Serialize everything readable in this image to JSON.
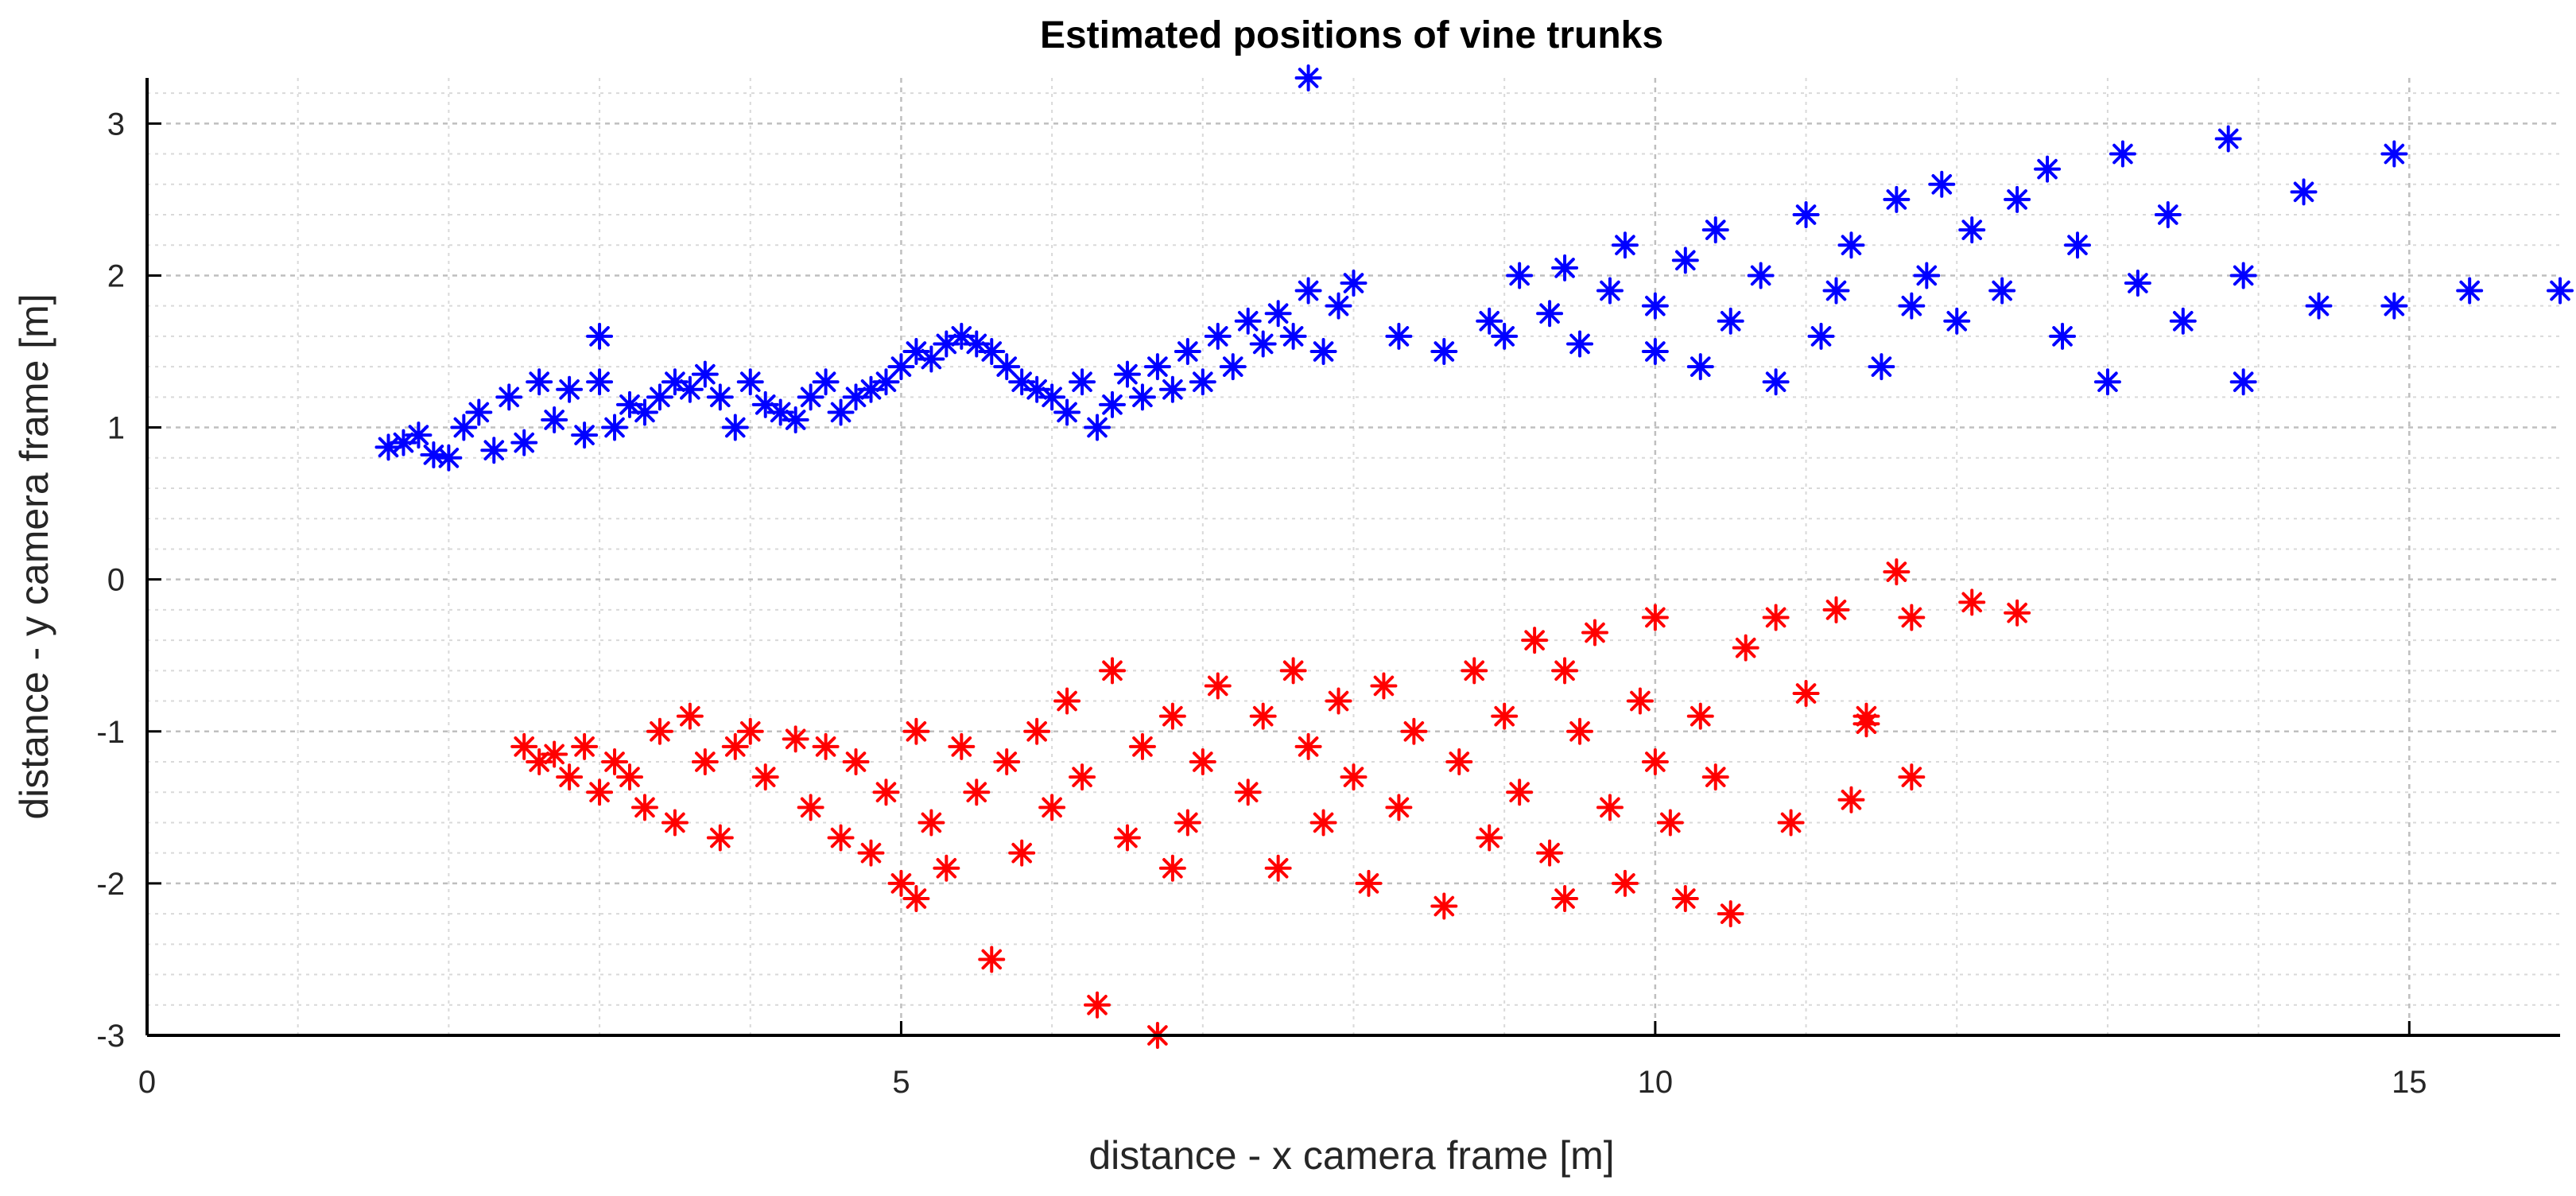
{
  "chart_data": {
    "type": "scatter",
    "title": "Estimated positions of vine trunks",
    "xlabel": "distance - x camera frame [m]",
    "ylabel": "distance - y camera frame [m]",
    "xlim": [
      0,
      16
    ],
    "ylim": [
      -3,
      3.3
    ],
    "x_ticks": [
      0,
      5,
      10,
      15
    ],
    "y_ticks": [
      -3,
      -2,
      -1,
      0,
      1,
      2,
      3
    ],
    "grid": true,
    "minor_grid": true,
    "marker": "asterisk",
    "series_colors": [
      "#0000ff",
      "#ff0000"
    ],
    "series": [
      {
        "points": [
          [
            1.6,
            0.87
          ],
          [
            1.7,
            0.9
          ],
          [
            1.8,
            0.95
          ],
          [
            1.9,
            0.82
          ],
          [
            2.0,
            0.8
          ],
          [
            2.1,
            1.0
          ],
          [
            2.2,
            1.1
          ],
          [
            2.3,
            0.85
          ],
          [
            2.4,
            1.2
          ],
          [
            2.5,
            0.9
          ],
          [
            2.6,
            1.3
          ],
          [
            2.7,
            1.05
          ],
          [
            2.8,
            1.25
          ],
          [
            2.9,
            0.95
          ],
          [
            3.0,
            1.3
          ],
          [
            3.1,
            1.0
          ],
          [
            3.2,
            1.15
          ],
          [
            3.3,
            1.1
          ],
          [
            3.4,
            1.2
          ],
          [
            3.5,
            1.3
          ],
          [
            3.6,
            1.25
          ],
          [
            3.7,
            1.35
          ],
          [
            3.8,
            1.2
          ],
          [
            3.9,
            1.0
          ],
          [
            4.0,
            1.3
          ],
          [
            4.1,
            1.15
          ],
          [
            4.2,
            1.1
          ],
          [
            4.3,
            1.05
          ],
          [
            4.4,
            1.2
          ],
          [
            4.5,
            1.3
          ],
          [
            4.6,
            1.1
          ],
          [
            4.7,
            1.2
          ],
          [
            4.8,
            1.25
          ],
          [
            4.9,
            1.3
          ],
          [
            5.0,
            1.4
          ],
          [
            5.1,
            1.5
          ],
          [
            5.2,
            1.45
          ],
          [
            5.3,
            1.55
          ],
          [
            5.4,
            1.6
          ],
          [
            5.5,
            1.55
          ],
          [
            5.6,
            1.5
          ],
          [
            5.7,
            1.4
          ],
          [
            5.8,
            1.3
          ],
          [
            5.9,
            1.25
          ],
          [
            6.0,
            1.2
          ],
          [
            6.1,
            1.1
          ],
          [
            6.2,
            1.3
          ],
          [
            6.3,
            1.0
          ],
          [
            6.4,
            1.15
          ],
          [
            6.5,
            1.35
          ],
          [
            6.6,
            1.2
          ],
          [
            6.7,
            1.4
          ],
          [
            6.8,
            1.25
          ],
          [
            6.9,
            1.5
          ],
          [
            7.0,
            1.3
          ],
          [
            7.1,
            1.6
          ],
          [
            7.2,
            1.4
          ],
          [
            7.3,
            1.7
          ],
          [
            7.4,
            1.55
          ],
          [
            7.5,
            1.75
          ],
          [
            7.6,
            1.6
          ],
          [
            7.7,
            1.9
          ],
          [
            7.8,
            1.5
          ],
          [
            7.9,
            1.8
          ],
          [
            8.0,
            1.95
          ],
          [
            8.3,
            1.6
          ],
          [
            8.6,
            1.5
          ],
          [
            8.9,
            1.7
          ],
          [
            9.0,
            1.6
          ],
          [
            9.1,
            2.0
          ],
          [
            9.3,
            1.75
          ],
          [
            9.4,
            2.05
          ],
          [
            9.5,
            1.55
          ],
          [
            9.7,
            1.9
          ],
          [
            9.8,
            2.2
          ],
          [
            10.0,
            1.5
          ],
          [
            10.0,
            1.8
          ],
          [
            10.2,
            2.1
          ],
          [
            10.3,
            1.4
          ],
          [
            10.4,
            2.3
          ],
          [
            10.5,
            1.7
          ],
          [
            10.7,
            2.0
          ],
          [
            10.8,
            1.3
          ],
          [
            11.0,
            2.4
          ],
          [
            11.1,
            1.6
          ],
          [
            11.2,
            1.9
          ],
          [
            11.3,
            2.2
          ],
          [
            11.5,
            1.4
          ],
          [
            11.6,
            2.5
          ],
          [
            11.7,
            1.8
          ],
          [
            11.8,
            2.0
          ],
          [
            11.9,
            2.6
          ],
          [
            12.0,
            1.7
          ],
          [
            12.1,
            2.3
          ],
          [
            12.3,
            1.9
          ],
          [
            12.4,
            2.5
          ],
          [
            12.6,
            2.7
          ],
          [
            12.7,
            1.6
          ],
          [
            12.8,
            2.2
          ],
          [
            13.0,
            1.3
          ],
          [
            13.1,
            2.8
          ],
          [
            13.2,
            1.95
          ],
          [
            13.4,
            2.4
          ],
          [
            13.5,
            1.7
          ],
          [
            13.8,
            2.9
          ],
          [
            13.9,
            1.3
          ],
          [
            13.9,
            2.0
          ],
          [
            14.3,
            2.55
          ],
          [
            14.4,
            1.8
          ],
          [
            14.9,
            2.8
          ],
          [
            14.9,
            1.8
          ],
          [
            15.4,
            1.9
          ],
          [
            16.0,
            1.9
          ],
          [
            7.7,
            3.3
          ],
          [
            3.0,
            1.6
          ]
        ]
      },
      {
        "points": [
          [
            2.5,
            -1.1
          ],
          [
            2.6,
            -1.2
          ],
          [
            2.7,
            -1.15
          ],
          [
            2.8,
            -1.3
          ],
          [
            2.9,
            -1.1
          ],
          [
            3.0,
            -1.4
          ],
          [
            3.1,
            -1.2
          ],
          [
            3.2,
            -1.3
          ],
          [
            3.3,
            -1.5
          ],
          [
            3.4,
            -1.0
          ],
          [
            3.5,
            -1.6
          ],
          [
            3.6,
            -0.9
          ],
          [
            3.7,
            -1.2
          ],
          [
            3.8,
            -1.7
          ],
          [
            3.9,
            -1.1
          ],
          [
            4.0,
            -1.0
          ],
          [
            4.1,
            -1.3
          ],
          [
            4.3,
            -1.05
          ],
          [
            4.4,
            -1.5
          ],
          [
            4.5,
            -1.1
          ],
          [
            4.6,
            -1.7
          ],
          [
            4.7,
            -1.2
          ],
          [
            4.8,
            -1.8
          ],
          [
            4.9,
            -1.4
          ],
          [
            5.0,
            -2.0
          ],
          [
            5.1,
            -1.0
          ],
          [
            5.2,
            -1.6
          ],
          [
            5.3,
            -1.9
          ],
          [
            5.4,
            -1.1
          ],
          [
            5.5,
            -1.4
          ],
          [
            5.6,
            -2.5
          ],
          [
            5.7,
            -1.2
          ],
          [
            5.8,
            -1.8
          ],
          [
            5.9,
            -1.0
          ],
          [
            6.0,
            -1.5
          ],
          [
            6.1,
            -0.8
          ],
          [
            6.2,
            -1.3
          ],
          [
            6.3,
            -2.8
          ],
          [
            6.4,
            -0.6
          ],
          [
            6.5,
            -1.7
          ],
          [
            6.6,
            -1.1
          ],
          [
            6.7,
            -3.0
          ],
          [
            6.8,
            -0.9
          ],
          [
            6.9,
            -1.6
          ],
          [
            7.0,
            -1.2
          ],
          [
            7.1,
            -0.7
          ],
          [
            7.3,
            -1.4
          ],
          [
            7.4,
            -0.9
          ],
          [
            7.5,
            -1.9
          ],
          [
            7.6,
            -0.6
          ],
          [
            7.7,
            -1.1
          ],
          [
            7.8,
            -1.6
          ],
          [
            7.9,
            -0.8
          ],
          [
            8.0,
            -1.3
          ],
          [
            8.1,
            -2.0
          ],
          [
            8.2,
            -0.7
          ],
          [
            8.3,
            -1.5
          ],
          [
            8.4,
            -1.0
          ],
          [
            8.6,
            -2.15
          ],
          [
            8.7,
            -1.2
          ],
          [
            8.8,
            -0.6
          ],
          [
            8.9,
            -1.7
          ],
          [
            9.0,
            -0.9
          ],
          [
            9.1,
            -1.4
          ],
          [
            9.2,
            -0.4
          ],
          [
            9.3,
            -1.8
          ],
          [
            9.4,
            -2.1
          ],
          [
            9.5,
            -1.0
          ],
          [
            9.6,
            -0.35
          ],
          [
            9.7,
            -1.5
          ],
          [
            9.8,
            -2.0
          ],
          [
            9.9,
            -0.8
          ],
          [
            10.0,
            -1.2
          ],
          [
            10.0,
            -0.25
          ],
          [
            10.1,
            -1.6
          ],
          [
            10.2,
            -2.1
          ],
          [
            10.3,
            -0.9
          ],
          [
            10.4,
            -1.3
          ],
          [
            10.5,
            -2.2
          ],
          [
            10.6,
            -0.45
          ],
          [
            10.8,
            -0.25
          ],
          [
            10.9,
            -1.6
          ],
          [
            11.0,
            -0.75
          ],
          [
            11.2,
            -0.2
          ],
          [
            11.3,
            -1.45
          ],
          [
            11.4,
            -0.95
          ],
          [
            11.6,
            0.05
          ],
          [
            11.7,
            -0.25
          ],
          [
            11.7,
            -1.3
          ],
          [
            12.1,
            -0.15
          ],
          [
            12.4,
            -0.22
          ],
          [
            11.4,
            -0.9
          ],
          [
            9.4,
            -0.6
          ],
          [
            6.8,
            -1.9
          ],
          [
            5.1,
            -2.1
          ]
        ]
      }
    ]
  }
}
